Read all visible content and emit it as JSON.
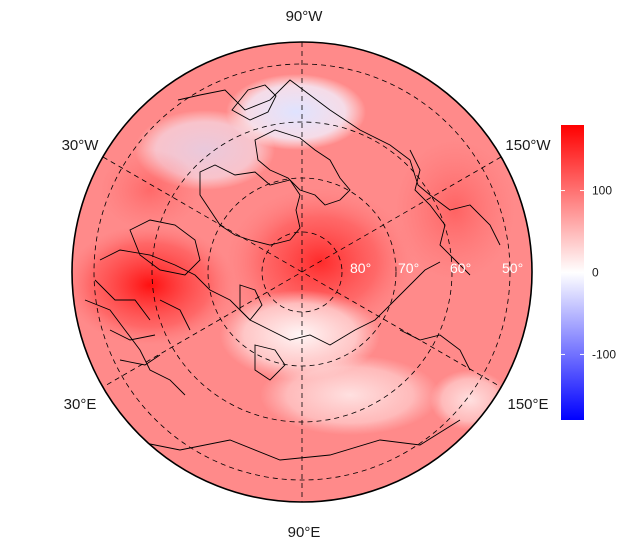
{
  "map": {
    "projection": "north-polar-stereographic",
    "longitude_labels": {
      "top": "90°W",
      "upper_left": "30°W",
      "upper_right": "150°W",
      "lower_left": "30°E",
      "lower_right": "150°E",
      "bottom": "90°E"
    },
    "latitude_labels": [
      "80°",
      "70°",
      "60°",
      "50°"
    ],
    "latitude_circles": [
      80,
      70,
      60,
      50
    ],
    "min_latitude": 40,
    "graticule_style": "dashed"
  },
  "colorbar": {
    "ticks": [
      "100",
      "0",
      "-100"
    ],
    "tick_values": [
      100,
      0,
      -100
    ],
    "range": [
      -180,
      180
    ],
    "colors": {
      "low": "#0000ff",
      "mid": "#ffffff",
      "high": "#ff0000"
    }
  },
  "field": {
    "description_units": "anomaly",
    "regions": [
      {
        "name": "polar-center",
        "value": 150
      },
      {
        "name": "western-russia",
        "value": 160
      },
      {
        "name": "north-canada",
        "value": -25
      },
      {
        "name": "arctic-central-siberia",
        "value": 10
      },
      {
        "name": "north-pacific",
        "value": 100
      }
    ]
  }
}
